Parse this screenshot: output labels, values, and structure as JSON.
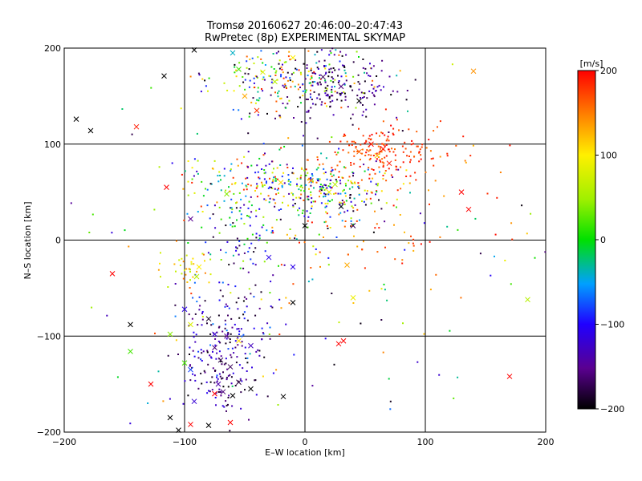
{
  "chart_data": {
    "type": "scatter",
    "title": "Tromsø 20160627 20:46:00–20:47:43",
    "subtitle": "RwPretec (8p) EXPERIMENTAL SKYMAP",
    "xlabel": "E–W location [km]",
    "ylabel": "N–S location [km]",
    "xlim": [
      -200,
      200
    ],
    "ylim": [
      -200,
      200
    ],
    "xticks": [
      -200,
      -100,
      0,
      100,
      200
    ],
    "yticks": [
      -200,
      -100,
      0,
      100,
      200
    ],
    "xtick_labels": [
      "−200",
      "−100",
      "0",
      "100",
      "200"
    ],
    "ytick_labels": [
      "200",
      "100",
      "0",
      "−100",
      "−200"
    ],
    "grid": true,
    "colorbar": {
      "label": "[m/s]",
      "range": [
        -200,
        200
      ],
      "tick_labels": [
        "200",
        "100",
        "0",
        "−100",
        "−200"
      ],
      "colormap": "rainbow: black → purple → blue → cyan → green → yellow → orange → red"
    },
    "cross_markers": [
      {
        "x": -190,
        "y": 126,
        "v": -200
      },
      {
        "x": -178,
        "y": 114,
        "v": -200
      },
      {
        "x": -117,
        "y": 171,
        "v": -200
      },
      {
        "x": -92,
        "y": 198,
        "v": -200
      },
      {
        "x": -140,
        "y": 118,
        "v": 190
      },
      {
        "x": 140,
        "y": 176,
        "v": 140
      },
      {
        "x": -60,
        "y": 195,
        "v": -40
      },
      {
        "x": -55,
        "y": 178,
        "v": 20
      },
      {
        "x": -35,
        "y": 175,
        "v": 80
      },
      {
        "x": -10,
        "y": 190,
        "v": 100
      },
      {
        "x": -25,
        "y": 165,
        "v": 60
      },
      {
        "x": 15,
        "y": 170,
        "v": -170
      },
      {
        "x": 30,
        "y": 160,
        "v": -160
      },
      {
        "x": 45,
        "y": 145,
        "v": -200
      },
      {
        "x": -40,
        "y": 135,
        "v": 180
      },
      {
        "x": -50,
        "y": 150,
        "v": 130
      },
      {
        "x": 55,
        "y": 100,
        "v": 200
      },
      {
        "x": 65,
        "y": 95,
        "v": 190
      },
      {
        "x": 45,
        "y": 92,
        "v": 160
      },
      {
        "x": 60,
        "y": 88,
        "v": 120
      },
      {
        "x": -95,
        "y": 22,
        "v": -150
      },
      {
        "x": -65,
        "y": 48,
        "v": 40
      },
      {
        "x": -20,
        "y": 60,
        "v": 110
      },
      {
        "x": 5,
        "y": 62,
        "v": 150
      },
      {
        "x": 25,
        "y": 58,
        "v": 60
      },
      {
        "x": 20,
        "y": 50,
        "v": 90
      },
      {
        "x": 30,
        "y": 35,
        "v": -190
      },
      {
        "x": 40,
        "y": 15,
        "v": -170
      },
      {
        "x": 0,
        "y": 15,
        "v": -200
      },
      {
        "x": 130,
        "y": 50,
        "v": 200
      },
      {
        "x": 136,
        "y": 32,
        "v": 200
      },
      {
        "x": -160,
        "y": -35,
        "v": 200
      },
      {
        "x": -30,
        "y": -18,
        "v": -110
      },
      {
        "x": -10,
        "y": -28,
        "v": -110
      },
      {
        "x": -88,
        "y": -28,
        "v": 100
      },
      {
        "x": -90,
        "y": -38,
        "v": 60
      },
      {
        "x": 35,
        "y": -26,
        "v": 130
      },
      {
        "x": 40,
        "y": -60,
        "v": 90
      },
      {
        "x": -10,
        "y": -65,
        "v": -200
      },
      {
        "x": 185,
        "y": -62,
        "v": 60
      },
      {
        "x": -145,
        "y": -88,
        "v": -200
      },
      {
        "x": -112,
        "y": -98,
        "v": 40
      },
      {
        "x": -95,
        "y": -88,
        "v": 80
      },
      {
        "x": -100,
        "y": -72,
        "v": -110
      },
      {
        "x": -80,
        "y": -82,
        "v": -190
      },
      {
        "x": -75,
        "y": -98,
        "v": -120
      },
      {
        "x": -65,
        "y": -100,
        "v": -150
      },
      {
        "x": -55,
        "y": -105,
        "v": 110
      },
      {
        "x": -145,
        "y": -116,
        "v": 20
      },
      {
        "x": -100,
        "y": -128,
        "v": 20
      },
      {
        "x": -95,
        "y": -135,
        "v": -80
      },
      {
        "x": -75,
        "y": -112,
        "v": -160
      },
      {
        "x": -70,
        "y": -125,
        "v": -180
      },
      {
        "x": -62,
        "y": -132,
        "v": -170
      },
      {
        "x": -55,
        "y": -148,
        "v": -180
      },
      {
        "x": -72,
        "y": -150,
        "v": -140
      },
      {
        "x": -68,
        "y": -158,
        "v": -160
      },
      {
        "x": -60,
        "y": -162,
        "v": -200
      },
      {
        "x": -75,
        "y": -160,
        "v": 200
      },
      {
        "x": -92,
        "y": -168,
        "v": -120
      },
      {
        "x": -45,
        "y": -155,
        "v": -200
      },
      {
        "x": -18,
        "y": -163,
        "v": -200
      },
      {
        "x": -128,
        "y": -150,
        "v": 200
      },
      {
        "x": -112,
        "y": -185,
        "v": -200
      },
      {
        "x": -105,
        "y": -198,
        "v": -200
      },
      {
        "x": -95,
        "y": -192,
        "v": 200
      },
      {
        "x": -80,
        "y": -193,
        "v": -200
      },
      {
        "x": -62,
        "y": -190,
        "v": 200
      },
      {
        "x": 170,
        "y": -142,
        "v": 200
      },
      {
        "x": 32,
        "y": -105,
        "v": 200
      },
      {
        "x": 28,
        "y": -108,
        "v": 200
      },
      {
        "x": -45,
        "y": -110,
        "v": -130
      },
      {
        "x": -115,
        "y": 55,
        "v": 200
      },
      {
        "x": 70,
        "y": 80,
        "v": 190
      }
    ],
    "dot_clusters": [
      {
        "cx": -10,
        "cy": 170,
        "sx": 35,
        "sy": 18,
        "vmin": -200,
        "vmax": 200,
        "n": 220
      },
      {
        "cx": 25,
        "cy": 160,
        "sx": 25,
        "sy": 18,
        "vmin": -200,
        "vmax": -120,
        "n": 160
      },
      {
        "cx": 60,
        "cy": 92,
        "sx": 28,
        "sy": 14,
        "vmin": 150,
        "vmax": 200,
        "n": 170
      },
      {
        "cx": -20,
        "cy": 58,
        "sx": 45,
        "sy": 15,
        "vmin": -150,
        "vmax": 200,
        "n": 240
      },
      {
        "cx": 25,
        "cy": 45,
        "sx": 25,
        "sy": 15,
        "vmin": -200,
        "vmax": 120,
        "n": 120
      },
      {
        "cx": -50,
        "cy": 5,
        "sx": 20,
        "sy": 25,
        "vmin": -200,
        "vmax": 60,
        "n": 80
      },
      {
        "cx": -95,
        "cy": -25,
        "sx": 10,
        "sy": 10,
        "vmin": 40,
        "vmax": 160,
        "n": 35
      },
      {
        "cx": -65,
        "cy": -85,
        "sx": 20,
        "sy": 25,
        "vmin": -200,
        "vmax": -60,
        "n": 110
      },
      {
        "cx": -70,
        "cy": -140,
        "sx": 14,
        "sy": 22,
        "vmin": -200,
        "vmax": -100,
        "n": 130
      },
      {
        "cx": 60,
        "cy": 20,
        "sx": 50,
        "sy": 45,
        "vmin": 120,
        "vmax": 200,
        "n": 90
      },
      {
        "cx": 0,
        "cy": 0,
        "sx": 110,
        "sy": 110,
        "vmin": -200,
        "vmax": 200,
        "n": 160
      }
    ]
  }
}
